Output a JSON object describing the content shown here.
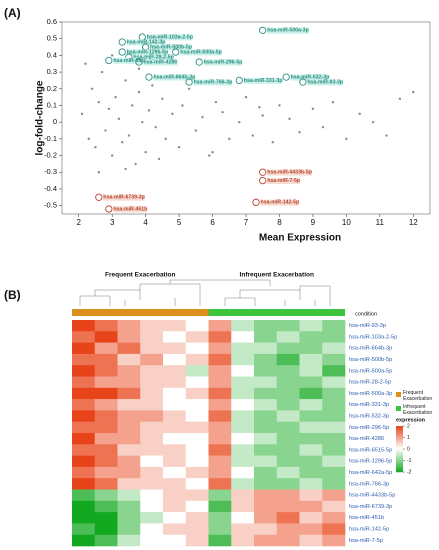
{
  "chart_data": [
    {
      "type": "scatter",
      "panel": "(A)",
      "xlabel": "Mean Expression",
      "ylabel": "log-fold-change",
      "xlim": [
        1.5,
        12.5
      ],
      "xticks": [
        2,
        3,
        4,
        5,
        6,
        7,
        8,
        9,
        10,
        11,
        12
      ],
      "ylim": [
        -0.55,
        0.6
      ],
      "yticks": [
        -0.5,
        -0.4,
        -0.3,
        -0.2,
        -0.1,
        0,
        0.1,
        0.2,
        0.3,
        0.4,
        0.5,
        0.6
      ],
      "series": [
        {
          "color": "#8a8a8a",
          "x": [
            2.1,
            2.3,
            2.4,
            2.5,
            2.6,
            2.7,
            2.8,
            2.9,
            3.0,
            3.1,
            3.2,
            3.3,
            3.4,
            3.5,
            3.6,
            3.7,
            3.8,
            3.9,
            4.0,
            4.1,
            4.2,
            4.3,
            4.5,
            4.6,
            4.8,
            5.0,
            5.1,
            5.3,
            5.5,
            5.7,
            5.9,
            6.1,
            6.3,
            6.5,
            6.8,
            7.0,
            7.2,
            7.5,
            7.8,
            8.0,
            8.3,
            8.6,
            9.0,
            9.3,
            9.6,
            10.0,
            10.4,
            10.8,
            11.2,
            11.6,
            12.0,
            2.2,
            2.6,
            3.0,
            3.4,
            3.8,
            4.4,
            5.2,
            6.0,
            7.4
          ],
          "values": [
            0.05,
            -0.1,
            0.2,
            -0.15,
            0.12,
            0.3,
            -0.05,
            0.08,
            -0.2,
            0.15,
            0.02,
            -0.12,
            0.25,
            -0.08,
            0.1,
            -0.25,
            0.18,
            0.0,
            -0.18,
            0.07,
            0.22,
            -0.03,
            0.14,
            -0.1,
            0.05,
            -0.15,
            0.1,
            0.2,
            -0.05,
            0.03,
            -0.2,
            0.12,
            0.06,
            -0.1,
            0.0,
            0.15,
            -0.08,
            0.04,
            -0.12,
            0.1,
            0.02,
            -0.06,
            0.08,
            -0.03,
            0.12,
            -0.1,
            0.05,
            0.0,
            -0.08,
            0.14,
            0.18,
            0.35,
            -0.3,
            0.4,
            -0.28,
            0.32,
            -0.22,
            0.28,
            -0.18,
            0.09
          ]
        }
      ],
      "up_color": "#2b8f7e",
      "down_color": "#b8432b",
      "annotations": [
        {
          "text": "hsa-miR-500a-3p",
          "x": 7.5,
          "y": 0.55,
          "direction": "up"
        },
        {
          "text": "hsa-miR-103a-2-5p",
          "x": 3.9,
          "y": 0.51,
          "direction": "up"
        },
        {
          "text": "hsa-miR-142-3p",
          "x": 3.3,
          "y": 0.48,
          "direction": "up"
        },
        {
          "text": "hsa-miR-500b-5p",
          "x": 4.0,
          "y": 0.45,
          "direction": "up"
        },
        {
          "text": "hsa-miR-1296-5p",
          "x": 3.3,
          "y": 0.42,
          "direction": "up"
        },
        {
          "text": "hsa-miR-500a-5p",
          "x": 4.9,
          "y": 0.42,
          "direction": "up"
        },
        {
          "text": "hsa-miR-28-2-5p",
          "x": 3.5,
          "y": 0.39,
          "direction": "up"
        },
        {
          "text": "hsa-miR-6515-5p",
          "x": 2.9,
          "y": 0.37,
          "direction": "up"
        },
        {
          "text": "hsa-miR-4286",
          "x": 3.8,
          "y": 0.36,
          "direction": "up"
        },
        {
          "text": "hsa-miR-296-5p",
          "x": 5.6,
          "y": 0.36,
          "direction": "up"
        },
        {
          "text": "hsa-miR-532-3p",
          "x": 8.2,
          "y": 0.27,
          "direction": "up"
        },
        {
          "text": "hsa-miR-664b-3p",
          "x": 4.1,
          "y": 0.27,
          "direction": "up"
        },
        {
          "text": "hsa-miR-93-3p",
          "x": 8.7,
          "y": 0.24,
          "direction": "up"
        },
        {
          "text": "hsa-miR-331-3p",
          "x": 6.8,
          "y": 0.25,
          "direction": "up"
        },
        {
          "text": "hsa-miR-766-3p",
          "x": 5.3,
          "y": 0.24,
          "direction": "up"
        },
        {
          "text": "hsa-miR-4433b-5p",
          "x": 7.5,
          "y": -0.3,
          "direction": "down"
        },
        {
          "text": "hsa-miR-7-5p",
          "x": 7.5,
          "y": -0.35,
          "direction": "down"
        },
        {
          "text": "hsa-miR-142-5p",
          "x": 7.3,
          "y": -0.48,
          "direction": "down"
        },
        {
          "text": "hsa-miR-6739-3p",
          "x": 2.6,
          "y": -0.45,
          "direction": "down"
        },
        {
          "text": "hsa-miR-451b",
          "x": 2.9,
          "y": -0.52,
          "direction": "down"
        }
      ]
    },
    {
      "type": "heatmap",
      "panel": "(B)",
      "condition_title": "condition",
      "legend_title": "expression",
      "zlim": [
        -2,
        2
      ],
      "zticks": [
        2,
        1,
        0,
        -1,
        -2
      ],
      "high_color": "#e8441a",
      "mid_color": "#ffffff",
      "low_color": "#12a81f",
      "rows": [
        "hsa-miR-93-3p",
        "hsa-miR-103a-2-5p",
        "hsa-miR-664b-3p",
        "hsa-miR-500b-5p",
        "hsa-miR-500a-5p",
        "hsa-miR-28-2-5p",
        "hsa-miR-500a-3p",
        "hsa-miR-331-3p",
        "hsa-miR-532-3p",
        "hsa-miR-296-5p",
        "hsa-miR-4286",
        "hsa-miR-6515-5p",
        "hsa-miR-1296-5p",
        "hsa-miR-642a-5p",
        "hsa-miR-766-3p",
        "hsa-miR-4433b-5p",
        "hsa-miR-6739-3p",
        "hsa-miR-451b",
        "hsa-miR-142-5p",
        "hsa-miR-7-5p"
      ],
      "groups": [
        {
          "name": "Frequent Exacerbation",
          "color": "#d9901e",
          "values": [
            [
              2,
              1.5,
              1,
              0.5,
              0.5,
              0
            ],
            [
              1.5,
              2,
              1,
              0.5,
              0,
              0.5
            ],
            [
              2,
              1,
              1.5,
              0.5,
              0.5,
              0
            ],
            [
              1.5,
              1.5,
              0.5,
              1,
              0,
              0.5
            ],
            [
              2,
              1.5,
              1,
              0.5,
              0.5,
              -0.5
            ],
            [
              1.5,
              1,
              1,
              0.5,
              0.5,
              0
            ],
            [
              2,
              2,
              1.5,
              0.5,
              0,
              0.5
            ],
            [
              1.5,
              1,
              0.5,
              0.5,
              0,
              0
            ],
            [
              2,
              1.5,
              1,
              1,
              0.5,
              0
            ],
            [
              1.5,
              1.5,
              1,
              0.5,
              0.5,
              0.5
            ],
            [
              2,
              1,
              1,
              0.5,
              0,
              0
            ],
            [
              1.5,
              1.5,
              0.5,
              0.5,
              0.5,
              0
            ],
            [
              2,
              1.5,
              1,
              0,
              0.5,
              0
            ],
            [
              1.5,
              1,
              1,
              0.5,
              0,
              0.5
            ],
            [
              2,
              1.5,
              0.5,
              0.5,
              0.5,
              0
            ],
            [
              -1.5,
              -1,
              -0.5,
              0,
              0.5,
              0.5
            ],
            [
              -2,
              -1.5,
              -1,
              0,
              0.5,
              0
            ],
            [
              -2,
              -2,
              -1,
              -0.5,
              0,
              0.5
            ],
            [
              -1.5,
              -2,
              -1,
              0,
              0.5,
              0.5
            ],
            [
              -2,
              -1.5,
              -0.5,
              0,
              0,
              0.5
            ]
          ]
        },
        {
          "name": "Infrequent Exacerbation",
          "color": "#3cc43c",
          "values": [
            [
              1,
              -0.5,
              -1,
              -1,
              -0.5,
              -1
            ],
            [
              1.5,
              0,
              -1,
              -0.5,
              -1,
              -1
            ],
            [
              1,
              -0.5,
              -0.5,
              -1,
              -1,
              -0.5
            ],
            [
              1.5,
              -0.5,
              -1,
              -1.5,
              -0.5,
              -1
            ],
            [
              1,
              0,
              -1,
              -1,
              -0.5,
              -1.5
            ],
            [
              1,
              -0.5,
              -0.5,
              -1,
              -1,
              -0.5
            ],
            [
              1.5,
              -0.5,
              -1,
              -1,
              -1.5,
              -1
            ],
            [
              1,
              0,
              -0.5,
              -1,
              -0.5,
              -1
            ],
            [
              1.5,
              -0.5,
              -1,
              -0.5,
              -1,
              -1
            ],
            [
              1,
              -0.5,
              -1,
              -1,
              -0.5,
              -0.5
            ],
            [
              1,
              0,
              -0.5,
              -1,
              -1,
              -1
            ],
            [
              1.5,
              -0.5,
              -1,
              -1,
              -0.5,
              -1
            ],
            [
              1,
              -0.5,
              -0.5,
              -1,
              -1,
              -0.5
            ],
            [
              1,
              0,
              -1,
              -0.5,
              -1,
              -1
            ],
            [
              1.5,
              -0.5,
              -1,
              -1,
              -0.5,
              -1
            ],
            [
              -1,
              0.5,
              1,
              1,
              0.5,
              1
            ],
            [
              -1.5,
              0.5,
              1,
              1,
              1,
              0.5
            ],
            [
              -1,
              0,
              1,
              1.5,
              0.5,
              1
            ],
            [
              -1,
              0.5,
              0.5,
              1,
              1,
              1.5
            ],
            [
              -1.5,
              0.5,
              1,
              1,
              0.5,
              1
            ]
          ]
        }
      ]
    }
  ]
}
